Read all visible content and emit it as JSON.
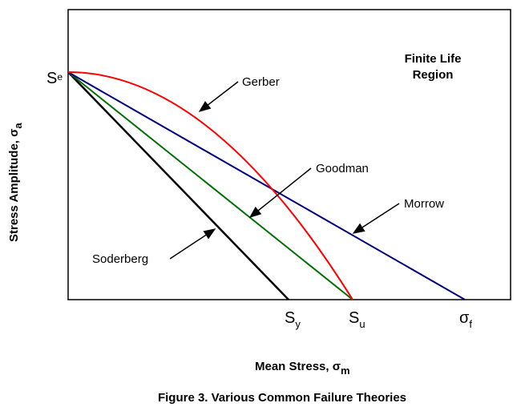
{
  "axes": {
    "y_label": {
      "text": "Stress Amplitude, σ",
      "subscript": "a"
    },
    "x_label": {
      "text": "Mean Stress, σ",
      "subscript": "m"
    }
  },
  "points": {
    "endurance": {
      "symbol": "S",
      "subscript": "e"
    },
    "yield": {
      "symbol": "S",
      "subscript": "y"
    },
    "ultimate": {
      "symbol": "S",
      "subscript": "u"
    },
    "fracture": {
      "symbol": "σ",
      "subscript": "f"
    }
  },
  "region": [
    "Finite Life",
    "Region"
  ],
  "curves": {
    "gerber": "Gerber",
    "goodman": "Goodman",
    "morrow": "Morrow",
    "soderberg": "Soderberg"
  },
  "caption": "Figure 3.  Various Common Failure Theories"
}
